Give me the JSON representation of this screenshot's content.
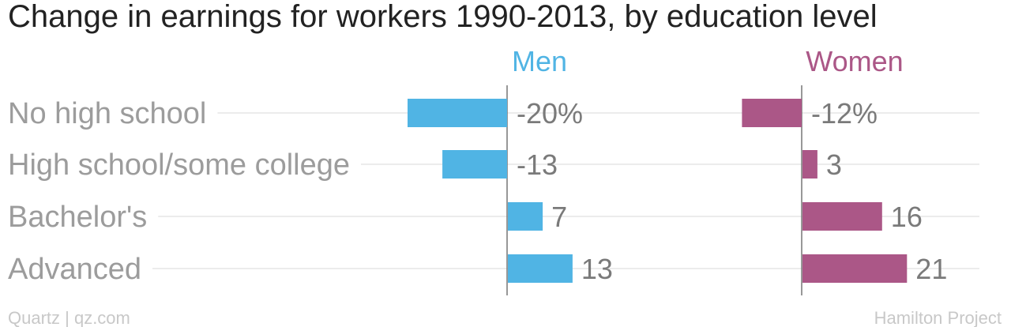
{
  "chart_data": {
    "type": "bar",
    "orientation": "horizontal",
    "title": "Change in earnings for workers 1990-2013, by education level",
    "categories": [
      "No high school",
      "High school/some college",
      "Bachelor's",
      "Advanced"
    ],
    "series": [
      {
        "name": "Men",
        "values": [
          -20,
          -13,
          7,
          13
        ],
        "labels": [
          "-20%",
          "-13",
          "7",
          "13"
        ],
        "color": "#50b4e4"
      },
      {
        "name": "Women",
        "values": [
          -12,
          3,
          16,
          21
        ],
        "labels": [
          "-12%",
          "3",
          "16",
          "21"
        ],
        "color": "#ab5787"
      }
    ],
    "grid": true
  },
  "footer": {
    "source_left": "Quartz | qz.com",
    "source_right": "Hamilton Project"
  }
}
